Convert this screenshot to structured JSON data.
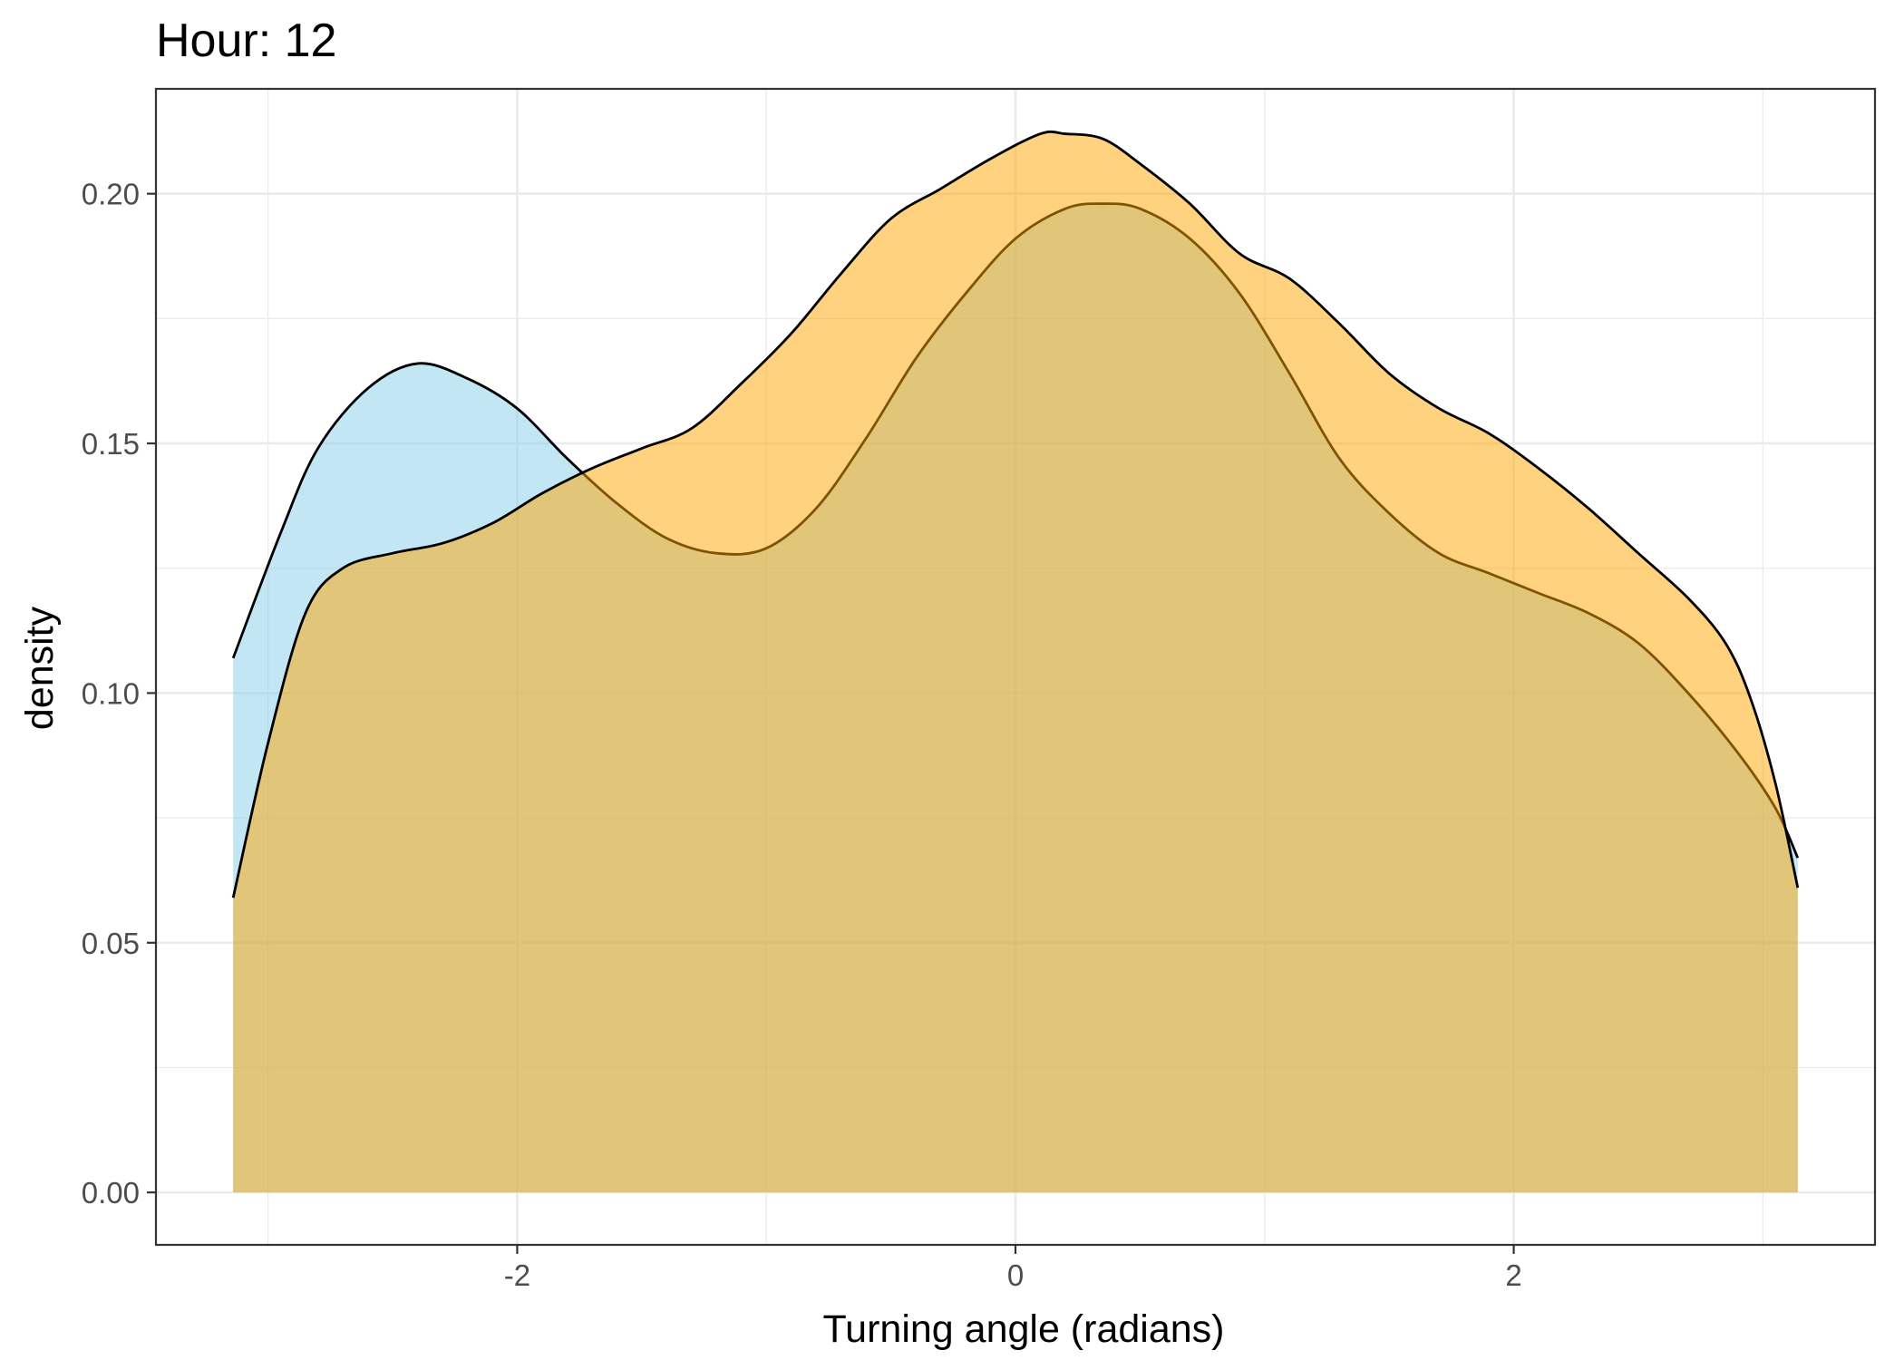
{
  "chart_data": {
    "type": "area",
    "title": "Hour: 12",
    "xlabel": "Turning angle (radians)",
    "ylabel": "density",
    "xlim": [
      -3.45,
      3.45
    ],
    "ylim": [
      -0.0105,
      0.221
    ],
    "x_ticks": [
      -2,
      0,
      2
    ],
    "x_tick_labels": [
      "-2",
      "0",
      "2"
    ],
    "y_ticks": [
      0.0,
      0.05,
      0.1,
      0.15,
      0.2
    ],
    "y_tick_labels": [
      "0.00",
      "0.05",
      "0.10",
      "0.15",
      "0.20"
    ],
    "x_minor_ticks": [
      -3,
      -1,
      1,
      3
    ],
    "y_minor_ticks": [
      0.025,
      0.075,
      0.125,
      0.175
    ],
    "grid": true,
    "legend": "none",
    "series": [
      {
        "fill_color": "#87CEEB",
        "fill_opacity": 0.5,
        "line_color": "#000000",
        "points": [
          [
            -3.14,
            0.107
          ],
          [
            -2.95,
            0.132
          ],
          [
            -2.8,
            0.149
          ],
          [
            -2.6,
            0.161
          ],
          [
            -2.4,
            0.166
          ],
          [
            -2.2,
            0.163
          ],
          [
            -2.0,
            0.157
          ],
          [
            -1.8,
            0.147
          ],
          [
            -1.6,
            0.138
          ],
          [
            -1.4,
            0.131
          ],
          [
            -1.2,
            0.128
          ],
          [
            -1.0,
            0.129
          ],
          [
            -0.8,
            0.137
          ],
          [
            -0.6,
            0.151
          ],
          [
            -0.4,
            0.167
          ],
          [
            -0.2,
            0.18
          ],
          [
            0.0,
            0.191
          ],
          [
            0.2,
            0.197
          ],
          [
            0.35,
            0.198
          ],
          [
            0.5,
            0.197
          ],
          [
            0.7,
            0.191
          ],
          [
            0.9,
            0.18
          ],
          [
            1.1,
            0.164
          ],
          [
            1.3,
            0.147
          ],
          [
            1.5,
            0.136
          ],
          [
            1.7,
            0.128
          ],
          [
            1.9,
            0.124
          ],
          [
            2.1,
            0.12
          ],
          [
            2.3,
            0.116
          ],
          [
            2.5,
            0.11
          ],
          [
            2.7,
            0.1
          ],
          [
            2.9,
            0.088
          ],
          [
            3.05,
            0.077
          ],
          [
            3.14,
            0.067
          ]
        ]
      },
      {
        "fill_color": "#FFA500",
        "fill_opacity": 0.5,
        "line_color": "#000000",
        "points": [
          [
            -3.14,
            0.059
          ],
          [
            -3.0,
            0.09
          ],
          [
            -2.85,
            0.116
          ],
          [
            -2.7,
            0.125
          ],
          [
            -2.5,
            0.128
          ],
          [
            -2.3,
            0.13
          ],
          [
            -2.1,
            0.134
          ],
          [
            -1.9,
            0.14
          ],
          [
            -1.7,
            0.145
          ],
          [
            -1.5,
            0.149
          ],
          [
            -1.3,
            0.153
          ],
          [
            -1.1,
            0.162
          ],
          [
            -0.9,
            0.172
          ],
          [
            -0.7,
            0.184
          ],
          [
            -0.5,
            0.195
          ],
          [
            -0.3,
            0.201
          ],
          [
            -0.1,
            0.207
          ],
          [
            0.1,
            0.212
          ],
          [
            0.2,
            0.212
          ],
          [
            0.35,
            0.211
          ],
          [
            0.5,
            0.206
          ],
          [
            0.7,
            0.198
          ],
          [
            0.9,
            0.188
          ],
          [
            1.1,
            0.183
          ],
          [
            1.3,
            0.174
          ],
          [
            1.5,
            0.164
          ],
          [
            1.7,
            0.157
          ],
          [
            1.9,
            0.152
          ],
          [
            2.1,
            0.145
          ],
          [
            2.3,
            0.137
          ],
          [
            2.5,
            0.128
          ],
          [
            2.7,
            0.119
          ],
          [
            2.85,
            0.11
          ],
          [
            2.95,
            0.099
          ],
          [
            3.05,
            0.082
          ],
          [
            3.14,
            0.061
          ]
        ]
      }
    ]
  }
}
